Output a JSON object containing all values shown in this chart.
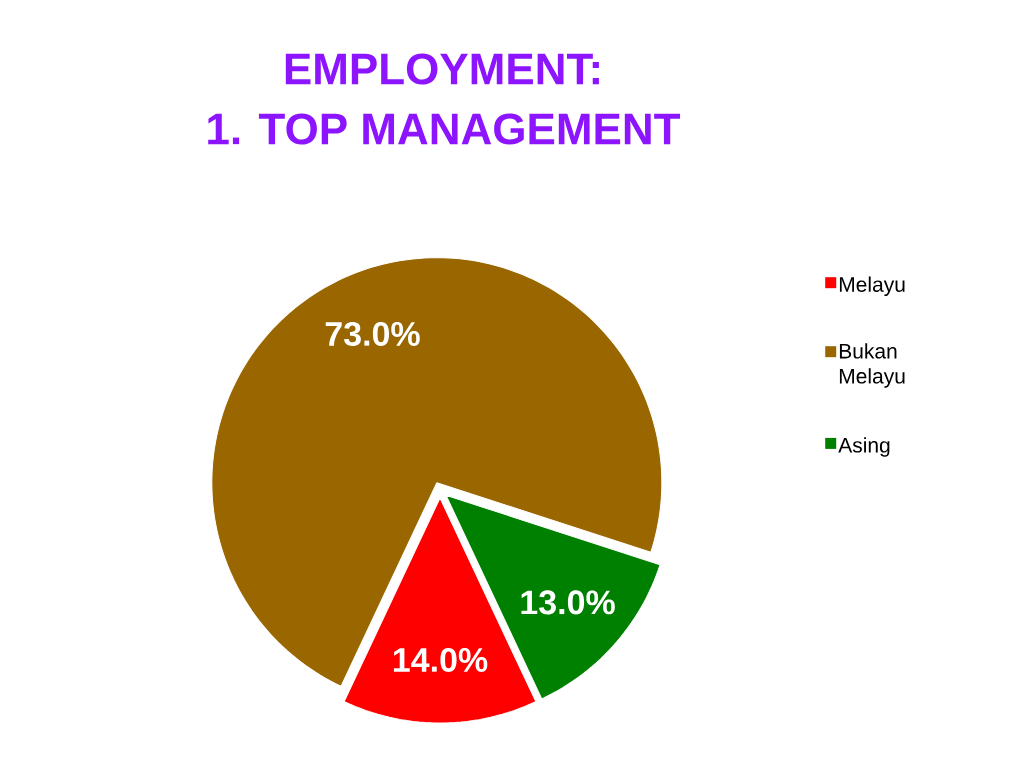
{
  "chart_data": {
    "type": "pie",
    "title": "EMPLOYMENT:\n1. TOP MANAGEMENT",
    "categories": [
      "Melayu",
      "Bukan Melayu",
      "Asing"
    ],
    "values": [
      14,
      73,
      13
    ],
    "colors": [
      "#ff0000",
      "#996600",
      "#008000"
    ],
    "value_labels": [
      "14.0%",
      "73.0%",
      "13.0%"
    ],
    "legend": "right"
  }
}
